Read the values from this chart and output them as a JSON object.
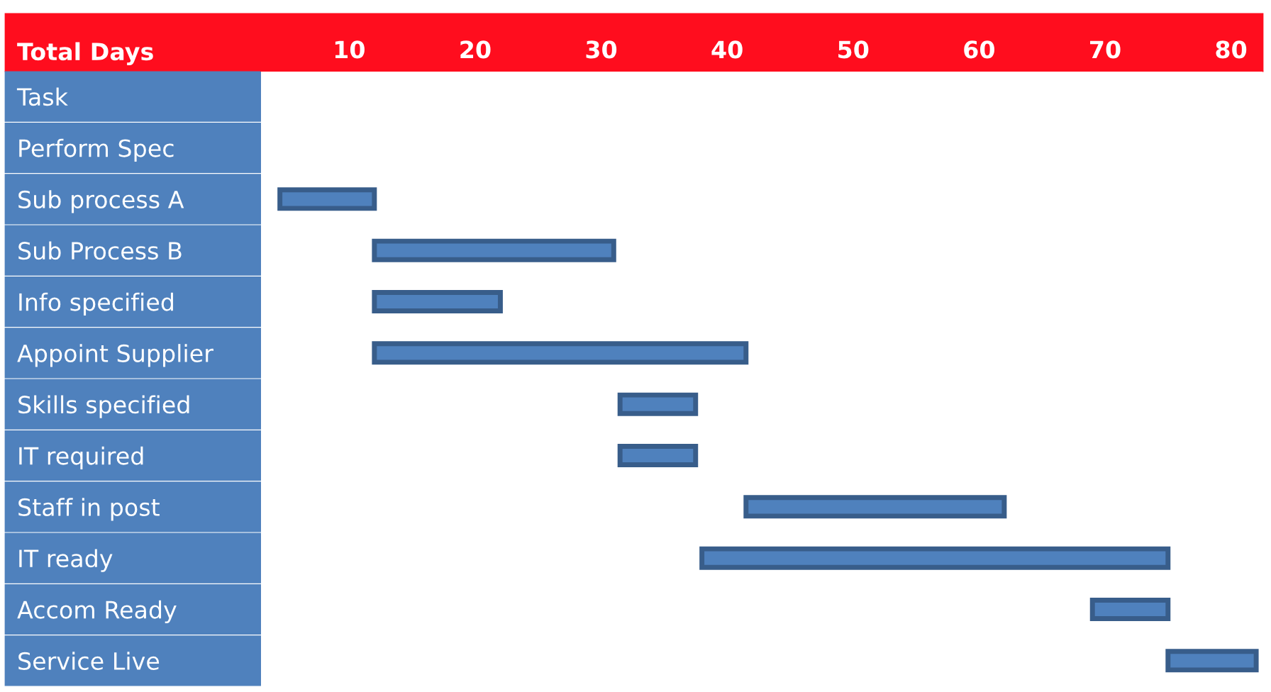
{
  "chart_data": {
    "type": "bar",
    "orientation": "horizontal",
    "xlabel": "Total Days",
    "categories": [
      "Task",
      "Perform Spec",
      "Sub process A",
      "Sub Process B",
      "Info specified",
      "Appoint Supplier",
      "Skills specified",
      "IT required",
      "Staff in post",
      "IT ready",
      "Accom Ready",
      "Service Live"
    ],
    "base": [
      null,
      null,
      4.5,
      12,
      12,
      12,
      31.5,
      31.5,
      41.5,
      38,
      69,
      75
    ],
    "values": [
      null,
      null,
      7.5,
      19,
      10,
      29.5,
      6,
      6,
      20.5,
      37,
      6,
      7
    ],
    "color": "#4f81bd",
    "xlim": [
      3,
      82.5
    ],
    "xticks": [
      10,
      20,
      30,
      40,
      50,
      60,
      70,
      80
    ],
    "grid": false,
    "legend": false
  }
}
